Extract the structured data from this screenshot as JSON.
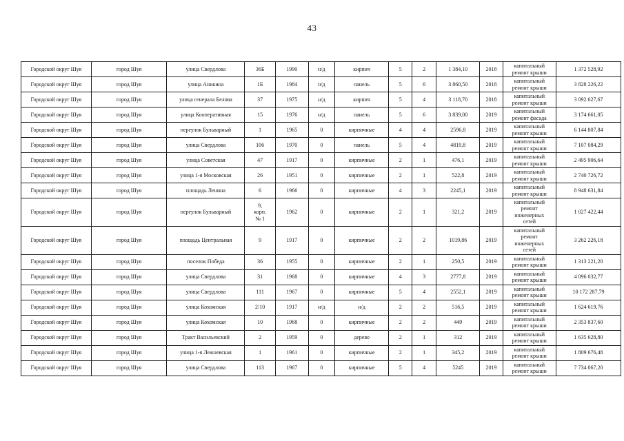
{
  "page": {
    "number": "43"
  },
  "table": {
    "rows": [
      [
        "Городской округ Шуя",
        "город Шуя",
        "улица Свердлова",
        "36Б",
        "1990",
        "н/д",
        "кирпич",
        "5",
        "2",
        "1 384,10",
        "2018",
        "капитальный\nремонт крыши",
        "1 372 528,92"
      ],
      [
        "Городской округ Шуя",
        "город Шуя",
        "улица Аникина",
        "1Б",
        "1984",
        "н/д",
        "панель",
        "5",
        "6",
        "3 860,50",
        "2018",
        "капитальный\nремонт крыши",
        "3 828 226,22"
      ],
      [
        "Городской округ Шуя",
        "город Шуя",
        "улица генерала Белова",
        "37",
        "1975",
        "н/д",
        "кирпич",
        "5",
        "4",
        "3 118,70",
        "2018",
        "капитальный\nремонт крыши",
        "3 092 627,67"
      ],
      [
        "Городской округ Шуя",
        "город Шуя",
        "улица Кооперативная",
        "15",
        "1976",
        "н/д",
        "панель",
        "5",
        "6",
        "3 839,00",
        "2019",
        "капитальный\nремонт фасада",
        "3 174 661,05"
      ],
      [
        "Городской округ Шуя",
        "город Шуя",
        "переулок Бульварный",
        "1",
        "1965",
        "0",
        "кирпичные",
        "4",
        "4",
        "2596,8",
        "2019",
        "капитальный\nремонт крыши",
        "6 144 807,84"
      ],
      [
        "Городской округ Шуя",
        "город Шуя",
        "улица Свердлова",
        "106",
        "1970",
        "0",
        "панель",
        "5",
        "4",
        "4819,8",
        "2019",
        "капитальный\nремонт крыши",
        "7 107 084,29"
      ],
      [
        "Городской округ Шуя",
        "город Шуя",
        "улица Советская",
        "47",
        "1917",
        "0",
        "кирпичные",
        "2",
        "1",
        "476,1",
        "2019",
        "капитальный\nремонт крыши",
        "2 495 906,64"
      ],
      [
        "Городской округ Шуя",
        "город Шуя",
        "улица 1-я Московская",
        "26",
        "1951",
        "0",
        "кирпичные",
        "2",
        "1",
        "522,8",
        "2019",
        "капитальный\nремонт крыши",
        "2 740 726,72"
      ],
      [
        "Городской округ Шуя",
        "город Шуя",
        "площадь Ленина",
        "6",
        "1966",
        "0",
        "кирпичные",
        "4",
        "3",
        "2245,1",
        "2019",
        "капитальный\nремонт крыши",
        "8 948 631,84"
      ],
      [
        "Городской округ Шуя",
        "город Шуя",
        "переулок Бульварный",
        "9,\nкорп.\n№ 1",
        "1962",
        "0",
        "кирпичные",
        "2",
        "1",
        "321,2",
        "2019",
        "капитальный\nремонт\nинженерных\nсетей",
        "1 027 422,44"
      ],
      [
        "Городской округ Шуя",
        "город Шуя",
        "площадь Центральная",
        "9",
        "1917",
        "0",
        "кирпичные",
        "2",
        "2",
        "1019,86",
        "2019",
        "капитальный\nремонт\nинженерных\nсетей",
        "3 262 226,18"
      ],
      [
        "Городской округ Шуя",
        "город Шуя",
        "поселок Победа",
        "36",
        "1955",
        "0",
        "кирпичные",
        "2",
        "1",
        "250,5",
        "2019",
        "капитальный\nремонт крыши",
        "1 313 221,20"
      ],
      [
        "Городской округ Шуя",
        "город Шуя",
        "улица Свердлова",
        "31",
        "1968",
        "0",
        "кирпичные",
        "4",
        "3",
        "2777,8",
        "2019",
        "капитальный\nремонт крыши",
        "4 096 032,77"
      ],
      [
        "Городской округ Шуя",
        "город Шуя",
        "улица Свердлова",
        "111",
        "1967",
        "0",
        "кирпичные",
        "5",
        "4",
        "2552,1",
        "2019",
        "капитальный\nремонт крыши",
        "10 172 287,79"
      ],
      [
        "Городской округ Шуя",
        "город Шуя",
        "улица Кохомская",
        "2/10",
        "1917",
        "н/д",
        "н/д",
        "2",
        "2",
        "516,5",
        "2019",
        "капитальный\nремонт крыши",
        "1 624 619,76"
      ],
      [
        "Городской округ Шуя",
        "город Шуя",
        "улица Кохомская",
        "10",
        "1968",
        "0",
        "кирпичные",
        "2",
        "2",
        "449",
        "2019",
        "капитальный\nремонт крыши",
        "2 353 837,60"
      ],
      [
        "Городской округ Шуя",
        "город Шуя",
        "Тракт Васильевский",
        "2",
        "1959",
        "0",
        "дерево",
        "2",
        "1",
        "312",
        "2019",
        "капитальный\nремонт крыши",
        "1 635 628,80"
      ],
      [
        "Городской округ Шуя",
        "город Шуя",
        "улица 1-я Лежневская",
        "1",
        "1961",
        "0",
        "кирпичные",
        "2",
        "1",
        "345,2",
        "2019",
        "капитальный\nремонт крыши",
        "1 809 676,48"
      ],
      [
        "Городской округ Шуя",
        "город Шуя",
        "улица Свердлова",
        "113",
        "1967",
        "0",
        "кирпичные",
        "5",
        "4",
        "5245",
        "2019",
        "капитальный\nремонт крыши",
        "7 734 067,20"
      ]
    ]
  }
}
